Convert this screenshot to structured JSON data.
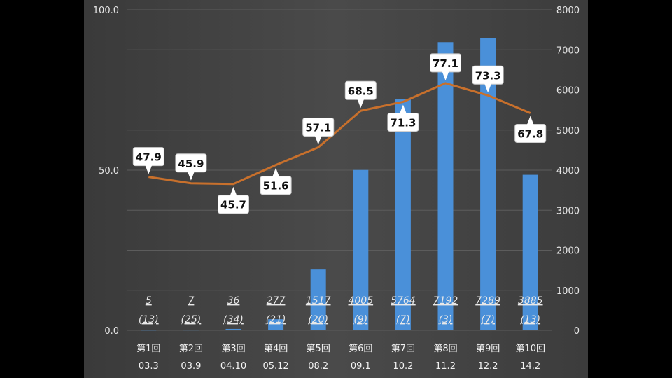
{
  "chart_data": {
    "type": "bar",
    "categories": [
      "第1回",
      "第2回",
      "第3回",
      "第4回",
      "第5回",
      "第6回",
      "第7回",
      "第8回",
      "第9回",
      "第10回"
    ],
    "dates": [
      "03.3",
      "03.9",
      "04.10",
      "05.12",
      "08.2",
      "09.1",
      "10.2",
      "11.2",
      "12.2",
      "14.2"
    ],
    "series": [
      {
        "type": "bar",
        "axis": "right",
        "values": [
          5,
          7,
          36,
          277,
          1517,
          4005,
          5764,
          7192,
          7289,
          3885
        ],
        "labels": [
          "5",
          "7",
          "36",
          "277",
          "1517",
          "4005",
          "5764",
          "7192",
          "7289",
          "3885"
        ],
        "sublabels": [
          "(13)",
          "(25)",
          "(34)",
          "(21)",
          "(20)",
          "(9)",
          "(7)",
          "(3)",
          "(7)",
          "(13)"
        ],
        "color": "#4a90d9"
      },
      {
        "type": "line",
        "axis": "left",
        "values": [
          47.9,
          45.9,
          45.7,
          51.6,
          57.1,
          68.5,
          71.3,
          77.1,
          73.3,
          67.8
        ],
        "labels": [
          "47.9",
          "45.9",
          "45.7",
          "51.6",
          "57.1",
          "68.5",
          "71.3",
          "77.1",
          "73.3",
          "67.8"
        ],
        "color": "#c8702c"
      }
    ],
    "y_left": {
      "ticks": [
        "0.0",
        "50.0",
        "100.0"
      ],
      "range": [
        0,
        100
      ]
    },
    "y_right": {
      "ticks": [
        "0",
        "1000",
        "2000",
        "3000",
        "4000",
        "5000",
        "6000",
        "7000",
        "8000"
      ],
      "range": [
        0,
        8000
      ]
    },
    "grid": true
  }
}
